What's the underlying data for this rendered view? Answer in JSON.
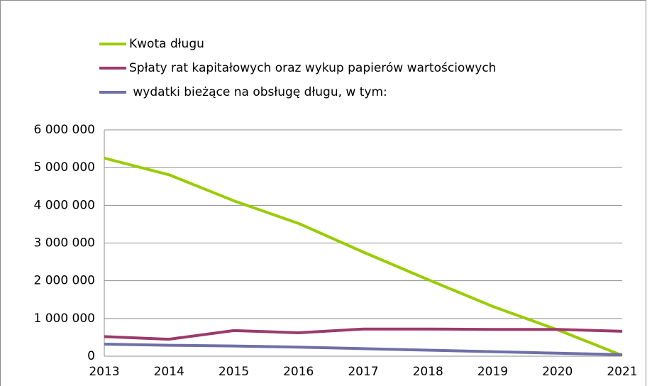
{
  "chart_data": {
    "type": "line",
    "categories": [
      "2013",
      "2014",
      "2015",
      "2016",
      "2017",
      "2018",
      "2019",
      "2020",
      "2021"
    ],
    "series": [
      {
        "name": "Kwota długu",
        "color": "#99cc00",
        "values": [
          5250000,
          4810000,
          4120000,
          3520000,
          2760000,
          2030000,
          1320000,
          700000,
          20000
        ]
      },
      {
        "name": "Spłaty rat kapitałowych oraz wykup papierów wartościowych",
        "color": "#9b3a6b",
        "values": [
          520000,
          450000,
          680000,
          620000,
          720000,
          720000,
          710000,
          710000,
          660000
        ]
      },
      {
        "name": " wydatki bieżące na obsługę długu, w tym:",
        "color": "#6f6fa8",
        "values": [
          320000,
          290000,
          270000,
          240000,
          200000,
          160000,
          120000,
          80000,
          40000
        ]
      }
    ],
    "ylim": [
      0,
      6000000
    ],
    "yticks": [
      0,
      {
        "value": 1000000,
        "label": "1 000 000"
      },
      {
        "value": 2000000,
        "label": "2 000 000"
      },
      {
        "value": 3000000,
        "label": "3 000 000"
      },
      {
        "value": 4000000,
        "label": "4 000 000"
      },
      {
        "value": 5000000,
        "label": "5 000 000"
      },
      {
        "value": 6000000,
        "label": "6 000 000"
      }
    ],
    "grid": true
  }
}
